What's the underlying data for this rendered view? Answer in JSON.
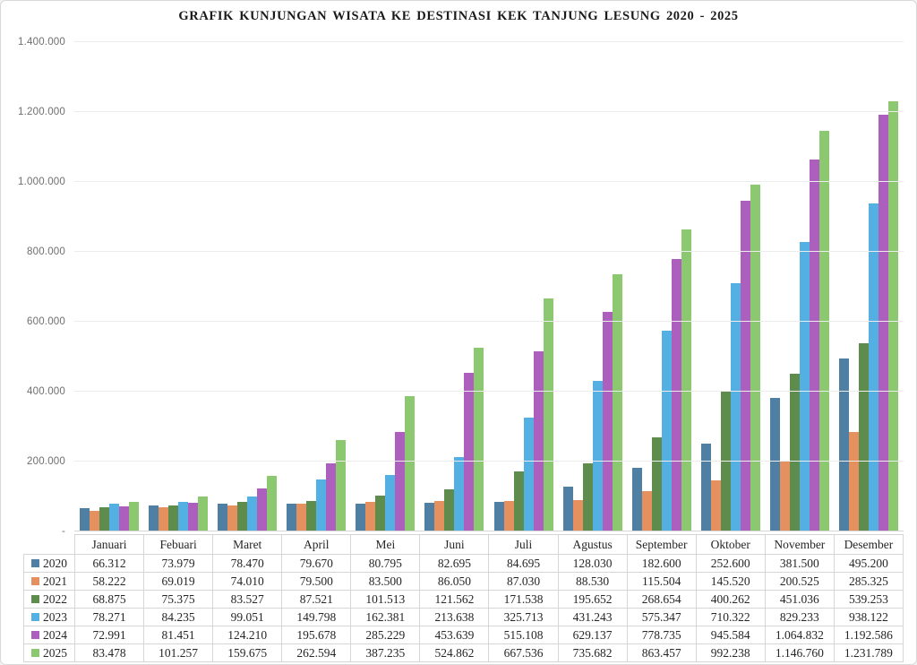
{
  "chart_data": {
    "type": "bar",
    "title": "GRAFIK KUNJUNGAN WISATA KE DESTINASI KEK TANJUNG LESUNG 2020 - 2025",
    "categories": [
      "Januari",
      "Febuari",
      "Maret",
      "April",
      "Mei",
      "Juni",
      "Juli",
      "Agustus",
      "September",
      "Oktober",
      "November",
      "Desember"
    ],
    "series": [
      {
        "name": "2020",
        "color": "#4f7fa3",
        "values": [
          66312,
          73979,
          78470,
          79670,
          80795,
          82695,
          84695,
          128030,
          182600,
          252600,
          381500,
          495200
        ]
      },
      {
        "name": "2021",
        "color": "#e5915f",
        "values": [
          58222,
          69019,
          74010,
          79500,
          83500,
          86050,
          87030,
          88530,
          115504,
          145520,
          200525,
          285325
        ]
      },
      {
        "name": "2022",
        "color": "#5d8c4c",
        "values": [
          68875,
          75375,
          83527,
          87521,
          101513,
          121562,
          171538,
          195652,
          268654,
          400262,
          451036,
          539253
        ]
      },
      {
        "name": "2023",
        "color": "#54b0e3",
        "values": [
          78271,
          84235,
          99051,
          149798,
          162381,
          213638,
          325713,
          431243,
          575347,
          710322,
          829233,
          938122
        ]
      },
      {
        "name": "2024",
        "color": "#ad5fbd",
        "values": [
          72991,
          81451,
          124210,
          195678,
          285229,
          453639,
          515108,
          629137,
          778735,
          945584,
          1064832,
          1192586
        ]
      },
      {
        "name": "2025",
        "color": "#8bc86f",
        "values": [
          83478,
          101257,
          159675,
          262594,
          387235,
          524862,
          667536,
          735682,
          863457,
          992238,
          1146760,
          1231789
        ]
      }
    ],
    "xlabel": "",
    "ylabel": "",
    "ylim": [
      0,
      1400000
    ],
    "ytick_interval": 200000,
    "ytick_labels": [
      "-",
      "200.000",
      "400.000",
      "600.000",
      "800.000",
      "1.000.000",
      "1.200.000",
      "1.400.000"
    ],
    "grid": true,
    "legend_position": "table-left",
    "number_format": "dot-thousands"
  }
}
